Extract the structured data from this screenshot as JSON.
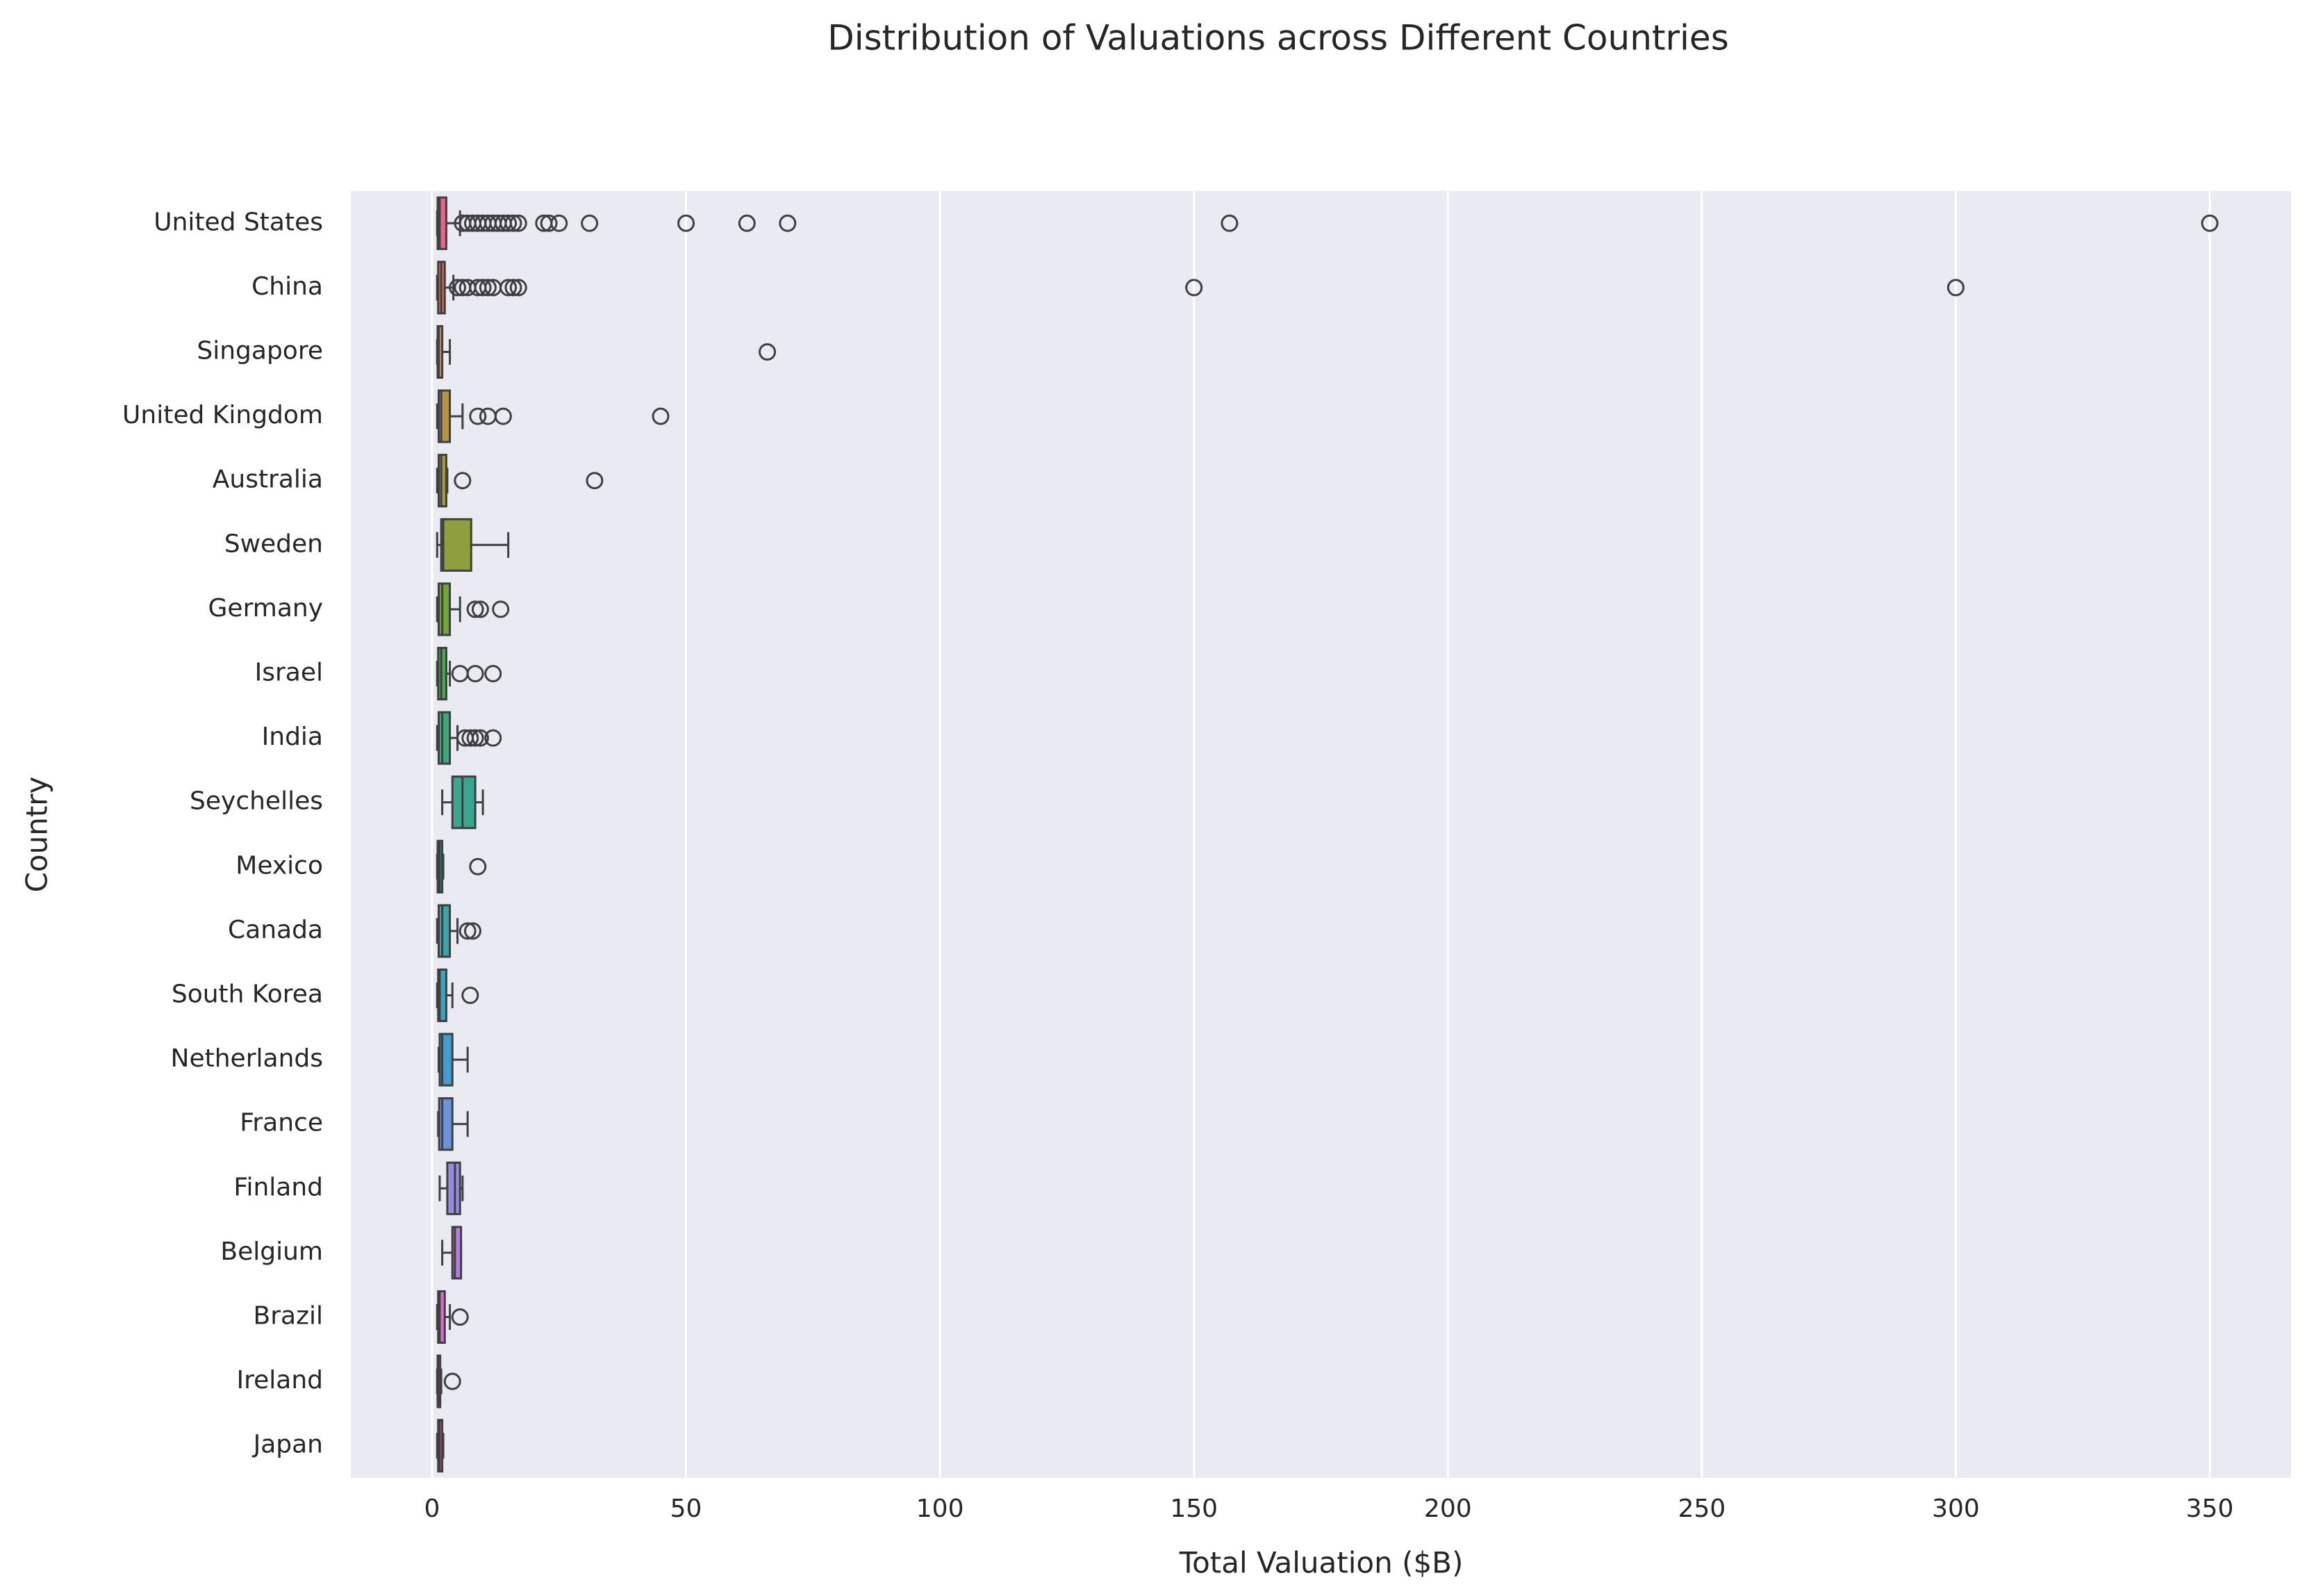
{
  "chart_data": {
    "type": "box",
    "title": "Distribution of Valuations across Different Countries",
    "xlabel": "Total Valuation ($B)",
    "ylabel": "Country",
    "categories": [
      "United States",
      "China",
      "Singapore",
      "United Kingdom",
      "Australia",
      "Sweden",
      "Germany",
      "Israel",
      "India",
      "Seychelles",
      "Mexico",
      "Canada",
      "South Korea",
      "Netherlands",
      "France",
      "Finland",
      "Belgium",
      "Brazil",
      "Ireland",
      "Japan"
    ],
    "colors": [
      "#e1688a",
      "#d8735a",
      "#c98a4a",
      "#b89342",
      "#a69a3e",
      "#8f9e3e",
      "#6fa53f",
      "#45a750",
      "#3aa878",
      "#3ba68f",
      "#3ca49e",
      "#3da3ad",
      "#3ea1ba",
      "#419dcc",
      "#6e92db",
      "#978ae2",
      "#b97ce6",
      "#d56ed5",
      "#df6bb8",
      "#e36aa0"
    ],
    "boxes": [
      {
        "low": 1,
        "q1": 1.1,
        "median": 1.5,
        "q3": 2.8,
        "high": 5.5,
        "outliers": [
          6,
          7,
          8,
          9,
          10,
          11,
          12,
          13,
          14,
          15,
          16,
          17,
          22,
          23,
          25,
          31,
          50,
          62,
          70,
          157,
          350
        ]
      },
      {
        "low": 1,
        "q1": 1.2,
        "median": 1.8,
        "q3": 2.5,
        "high": 4.2,
        "outliers": [
          5,
          6,
          7,
          9,
          10,
          11,
          12,
          15,
          16,
          17,
          150,
          300
        ]
      },
      {
        "low": 1,
        "q1": 1.1,
        "median": 1.3,
        "q3": 2,
        "high": 3.5,
        "outliers": [
          66
        ]
      },
      {
        "low": 1,
        "q1": 1.3,
        "median": 1.8,
        "q3": 3.5,
        "high": 6,
        "outliers": [
          9,
          11,
          14,
          45
        ]
      },
      {
        "low": 1,
        "q1": 1.3,
        "median": 1.8,
        "q3": 2.8,
        "high": 3,
        "outliers": [
          6,
          32
        ]
      },
      {
        "low": 1,
        "q1": 1.8,
        "median": 2.2,
        "q3": 7.7,
        "high": 15,
        "outliers": []
      },
      {
        "low": 1,
        "q1": 1.3,
        "median": 2,
        "q3": 3.5,
        "high": 5.5,
        "outliers": [
          8.5,
          9.5,
          13.5
        ]
      },
      {
        "low": 1,
        "q1": 1.2,
        "median": 1.8,
        "q3": 2.8,
        "high": 3.5,
        "outliers": [
          5.5,
          8.5,
          12
        ]
      },
      {
        "low": 1,
        "q1": 1.3,
        "median": 2,
        "q3": 3.5,
        "high": 5,
        "outliers": [
          6.5,
          7.5,
          8.5,
          9.5,
          12
        ]
      },
      {
        "low": 2,
        "q1": 4,
        "median": 6,
        "q3": 8.5,
        "high": 10,
        "outliers": []
      },
      {
        "low": 1,
        "q1": 1.1,
        "median": 1.5,
        "q3": 2,
        "high": 2.2,
        "outliers": [
          9
        ]
      },
      {
        "low": 1,
        "q1": 1.3,
        "median": 2,
        "q3": 3.5,
        "high": 5,
        "outliers": [
          7,
          8
        ]
      },
      {
        "low": 1,
        "q1": 1.2,
        "median": 1.5,
        "q3": 2.8,
        "high": 4,
        "outliers": [
          7.5
        ]
      },
      {
        "low": 1.3,
        "q1": 1.5,
        "median": 2,
        "q3": 4,
        "high": 7,
        "outliers": []
      },
      {
        "low": 1.2,
        "q1": 1.4,
        "median": 2,
        "q3": 4,
        "high": 7,
        "outliers": []
      },
      {
        "low": 1.5,
        "q1": 3,
        "median": 4.5,
        "q3": 5.5,
        "high": 6,
        "outliers": []
      },
      {
        "low": 2,
        "q1": 4,
        "median": 4.5,
        "q3": 5.7,
        "high": 5.7,
        "outliers": []
      },
      {
        "low": 1,
        "q1": 1.2,
        "median": 1.5,
        "q3": 2.5,
        "high": 3.5,
        "outliers": [
          5.5
        ]
      },
      {
        "low": 1,
        "q1": 1.1,
        "median": 1.2,
        "q3": 1.6,
        "high": 1.8,
        "outliers": [
          4
        ]
      },
      {
        "low": 1,
        "q1": 1.2,
        "median": 1.5,
        "q3": 2,
        "high": 2.2,
        "outliers": []
      }
    ],
    "xlim": [
      -16,
      366
    ],
    "xticks": [
      0,
      50,
      100,
      150,
      200,
      250,
      300,
      350
    ],
    "grid": true
  }
}
